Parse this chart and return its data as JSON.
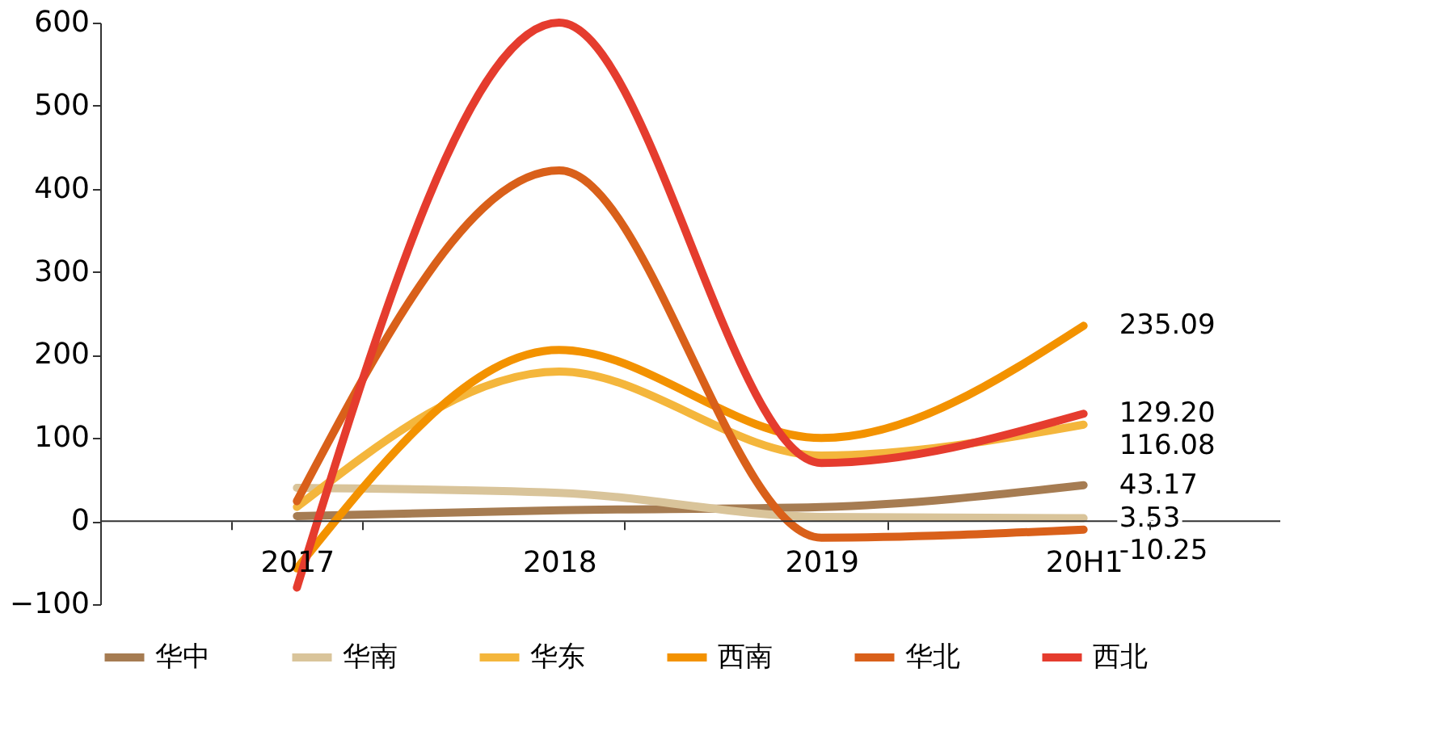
{
  "chart_data": {
    "type": "line",
    "categories": [
      "2017",
      "2018",
      "2019",
      "20H1"
    ],
    "series": [
      {
        "name": "华中",
        "color": "#a67c52",
        "values": [
          6,
          13,
          17,
          43.17
        ],
        "value_labels": [
          null,
          null,
          null,
          "43.17"
        ]
      },
      {
        "name": "华南",
        "color": "#d9c49a",
        "values": [
          40,
          34,
          5,
          3.53
        ],
        "value_labels": [
          null,
          null,
          null,
          "3.53"
        ]
      },
      {
        "name": "华东",
        "color": "#f4b63c",
        "values": [
          17,
          180,
          79,
          116.08
        ],
        "value_labels": [
          null,
          null,
          null,
          "116.08"
        ]
      },
      {
        "name": "西南",
        "color": "#f39200",
        "values": [
          -57,
          206,
          100,
          235.09
        ],
        "value_labels": [
          null,
          null,
          null,
          "235.09"
        ]
      },
      {
        "name": "华北",
        "color": "#d9601a",
        "values": [
          24,
          422,
          -20,
          -10.25
        ],
        "value_labels": [
          null,
          null,
          null,
          "-10.25"
        ]
      },
      {
        "name": "西北",
        "color": "#e53c2e",
        "values": [
          -80,
          600,
          70,
          129.2
        ],
        "value_labels": [
          null,
          null,
          null,
          "129.20"
        ]
      }
    ],
    "ylim": [
      -100,
      600
    ],
    "yticks": [
      -100,
      0,
      100,
      200,
      300,
      400,
      500,
      600
    ],
    "grid": false,
    "legend": "bottom",
    "marker": "none",
    "line_style": "solid"
  }
}
